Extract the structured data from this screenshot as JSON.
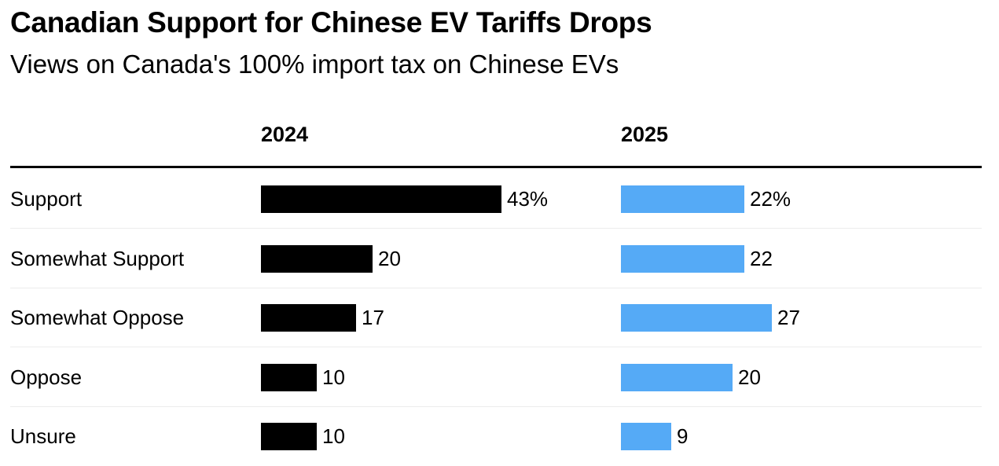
{
  "title": "Canadian Support for Chinese EV Tariffs Drops",
  "subtitle": "Views on Canada's 100% import tax on Chinese EVs",
  "chart_data": {
    "type": "bar",
    "orientation": "horizontal",
    "categories": [
      "Support",
      "Somewhat Support",
      "Somewhat Oppose",
      "Oppose",
      "Unsure"
    ],
    "series": [
      {
        "name": "2024",
        "values": [
          43,
          20,
          17,
          10,
          10
        ],
        "labels": [
          "43%",
          "20",
          "17",
          "10",
          "10"
        ],
        "color": "#000000"
      },
      {
        "name": "2025",
        "values": [
          22,
          22,
          27,
          20,
          9
        ],
        "labels": [
          "22%",
          "22",
          "27",
          "20",
          "9"
        ],
        "color": "#55aaf6"
      }
    ],
    "grid": false,
    "legend": "column headers"
  }
}
